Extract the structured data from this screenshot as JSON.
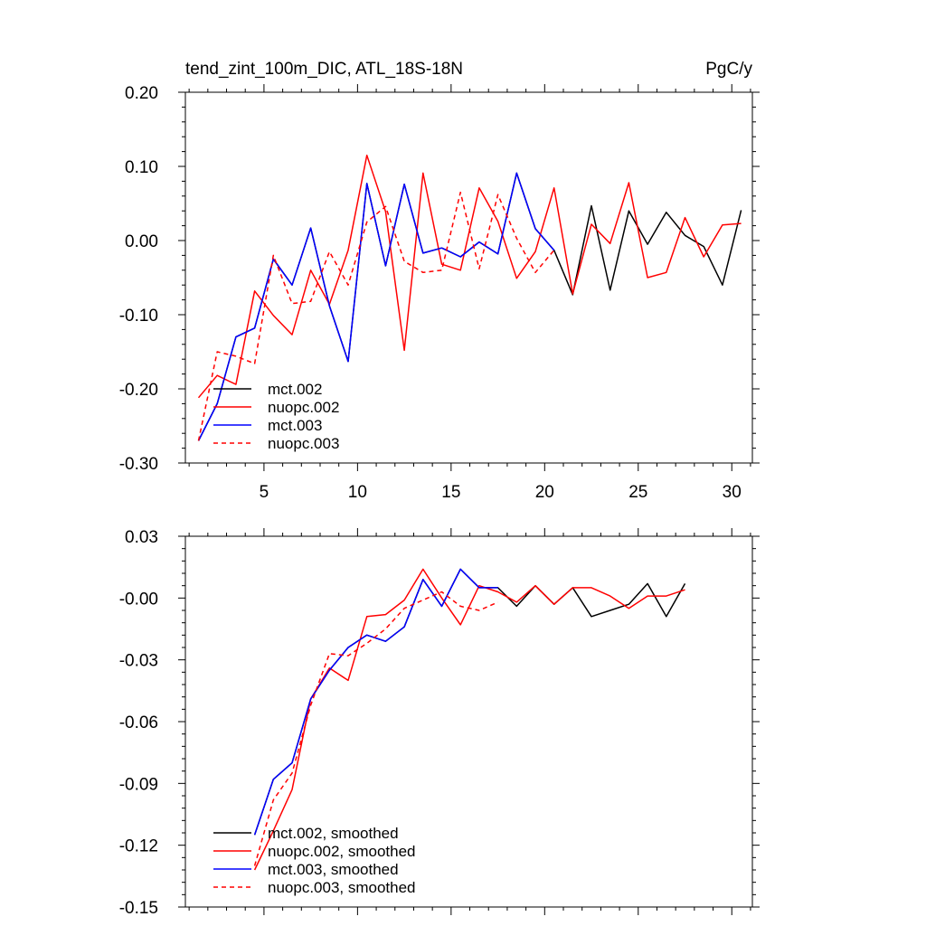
{
  "colors": {
    "black": "#000000",
    "red": "#ff0000",
    "blue": "#0000ff"
  },
  "chart_data": [
    {
      "type": "line",
      "title": "tend_zint_100m_DIC, ATL_18S-18N",
      "units": "PgC/y",
      "xlim": [
        0.8,
        31.1
      ],
      "ylim": [
        -0.3,
        0.2
      ],
      "xticks": [
        5,
        10,
        15,
        20,
        25,
        30
      ],
      "yticks": [
        -0.3,
        -0.2,
        -0.1,
        0.0,
        0.1,
        0.2
      ],
      "ytick_labels": [
        "-0.30",
        "-0.20",
        "-0.10",
        "0.00",
        "0.10",
        "0.20"
      ],
      "show_xtick_labels": true,
      "legend_position": "bottom-left",
      "series": [
        {
          "name": "mct.002",
          "color": "#000000",
          "dash": false,
          "x": [
            1.5,
            2.5,
            3.5,
            4.5,
            5.5,
            6.5,
            7.5,
            8.5,
            9.5,
            10.5,
            11.5,
            12.5,
            13.5,
            14.5,
            15.5,
            16.5,
            17.5,
            18.5,
            19.5,
            20.5,
            21.5,
            22.5,
            23.5,
            24.5,
            25.5,
            26.5,
            27.5,
            28.5,
            29.5,
            30.5
          ],
          "y": [
            -0.27,
            -0.22,
            -0.13,
            -0.118,
            -0.025,
            -0.06,
            0.017,
            -0.088,
            -0.163,
            0.077,
            -0.034,
            0.076,
            -0.017,
            -0.01,
            -0.022,
            -0.002,
            -0.018,
            0.091,
            0.016,
            -0.013,
            -0.073,
            0.047,
            -0.067,
            0.04,
            -0.005,
            0.038,
            0.007,
            -0.008,
            -0.06,
            0.041
          ]
        },
        {
          "name": "nuopc.002",
          "color": "#ff0000",
          "dash": false,
          "x": [
            1.5,
            2.5,
            3.5,
            4.5,
            5.5,
            6.5,
            7.5,
            8.5,
            9.5,
            10.5,
            11.5,
            12.5,
            13.5,
            14.5,
            15.5,
            16.5,
            17.5,
            18.5,
            19.5,
            20.5,
            21.5,
            22.5,
            23.5,
            24.5,
            25.5,
            26.5,
            27.5,
            28.5,
            29.5,
            30.5
          ],
          "y": [
            -0.212,
            -0.182,
            -0.194,
            -0.068,
            -0.101,
            -0.127,
            -0.04,
            -0.086,
            -0.013,
            0.115,
            0.039,
            -0.148,
            0.091,
            -0.032,
            -0.04,
            0.071,
            0.026,
            -0.051,
            -0.015,
            0.071,
            -0.072,
            0.022,
            -0.004,
            0.078,
            -0.05,
            -0.043,
            0.031,
            -0.022,
            0.021,
            0.023
          ]
        },
        {
          "name": "mct.003",
          "color": "#0000ff",
          "dash": false,
          "x": [
            1.5,
            2.5,
            3.5,
            4.5,
            5.5,
            6.5,
            7.5,
            8.5,
            9.5,
            10.5,
            11.5,
            12.5,
            13.5,
            14.5,
            15.5,
            16.5,
            17.5,
            18.5,
            19.5,
            20.5
          ],
          "y": [
            -0.27,
            -0.22,
            -0.13,
            -0.118,
            -0.025,
            -0.06,
            0.017,
            -0.088,
            -0.163,
            0.077,
            -0.034,
            0.076,
            -0.017,
            -0.01,
            -0.022,
            -0.002,
            -0.018,
            0.091,
            0.016,
            -0.013
          ]
        },
        {
          "name": "nuopc.003",
          "color": "#ff0000",
          "dash": true,
          "x": [
            1.5,
            2.5,
            3.5,
            4.5,
            5.5,
            6.5,
            7.5,
            8.5,
            9.5,
            10.5,
            11.5,
            12.5,
            13.5,
            14.5,
            15.5,
            16.5,
            17.5,
            18.5,
            19.5,
            20.5
          ],
          "y": [
            -0.27,
            -0.15,
            -0.156,
            -0.166,
            -0.02,
            -0.085,
            -0.082,
            -0.015,
            -0.06,
            0.025,
            0.046,
            -0.028,
            -0.043,
            -0.04,
            0.065,
            -0.038,
            0.062,
            0.003,
            -0.043,
            -0.013
          ]
        }
      ]
    },
    {
      "type": "line",
      "title": "",
      "units": "",
      "xlim": [
        0.8,
        31.1
      ],
      "ylim": [
        -0.15,
        0.03
      ],
      "xticks": [
        5,
        10,
        15,
        20,
        25,
        30
      ],
      "yticks": [
        -0.15,
        -0.12,
        -0.09,
        -0.06,
        -0.03,
        0.0,
        0.03
      ],
      "ytick_labels": [
        "-0.15",
        "-0.12",
        "-0.09",
        "-0.06",
        "-0.03",
        "-0.00",
        "0.03"
      ],
      "show_xtick_labels": false,
      "legend_position": "bottom-left",
      "series": [
        {
          "name": "mct.002, smoothed",
          "color": "#000000",
          "dash": false,
          "x": [
            4.5,
            5.5,
            6.5,
            7.5,
            8.5,
            9.5,
            10.5,
            11.5,
            12.5,
            13.5,
            14.5,
            15.5,
            16.5,
            17.5,
            18.5,
            19.5,
            20.5,
            21.5,
            22.5,
            23.5,
            24.5,
            25.5,
            26.5,
            27.5
          ],
          "y": [
            -0.115,
            -0.088,
            -0.08,
            -0.049,
            -0.035,
            -0.024,
            -0.018,
            -0.021,
            -0.014,
            0.009,
            -0.004,
            0.014,
            0.005,
            0.005,
            -0.004,
            0.006,
            -0.003,
            0.005,
            -0.009,
            -0.006,
            -0.003,
            0.007,
            -0.009,
            0.007
          ]
        },
        {
          "name": "nuopc.002, smoothed",
          "color": "#ff0000",
          "dash": false,
          "x": [
            4.5,
            5.5,
            6.5,
            7.5,
            8.5,
            9.5,
            10.5,
            11.5,
            12.5,
            13.5,
            14.5,
            15.5,
            16.5,
            17.5,
            18.5,
            19.5,
            20.5,
            21.5,
            22.5,
            23.5,
            24.5,
            25.5,
            26.5,
            27.5
          ],
          "y": [
            -0.132,
            -0.113,
            -0.093,
            -0.049,
            -0.034,
            -0.04,
            -0.009,
            -0.008,
            -0.001,
            0.014,
            0.0,
            -0.013,
            0.006,
            0.003,
            -0.002,
            0.006,
            -0.003,
            0.005,
            0.005,
            0.001,
            -0.005,
            0.001,
            0.001,
            0.004
          ]
        },
        {
          "name": "mct.003, smoothed",
          "color": "#0000ff",
          "dash": false,
          "x": [
            4.5,
            5.5,
            6.5,
            7.5,
            8.5,
            9.5,
            10.5,
            11.5,
            12.5,
            13.5,
            14.5,
            15.5,
            16.5,
            17.5
          ],
          "y": [
            -0.115,
            -0.088,
            -0.08,
            -0.049,
            -0.035,
            -0.024,
            -0.018,
            -0.021,
            -0.014,
            0.009,
            -0.004,
            0.014,
            0.005,
            0.005
          ]
        },
        {
          "name": "nuopc.003, smoothed",
          "color": "#ff0000",
          "dash": true,
          "x": [
            4.5,
            5.5,
            6.5,
            7.5,
            8.5,
            9.5,
            10.5,
            11.5,
            12.5,
            13.5,
            14.5,
            15.5,
            16.5,
            17.5
          ],
          "y": [
            -0.13,
            -0.098,
            -0.085,
            -0.052,
            -0.027,
            -0.028,
            -0.022,
            -0.015,
            -0.005,
            -0.001,
            0.003,
            -0.004,
            -0.006,
            -0.002
          ]
        }
      ]
    }
  ]
}
